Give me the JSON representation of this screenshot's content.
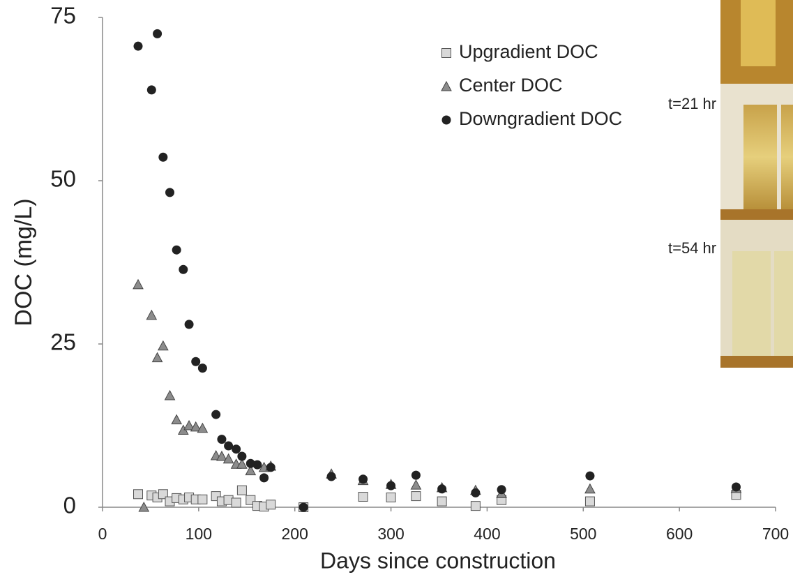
{
  "chart_data": {
    "type": "scatter",
    "x_label": "Days since construction",
    "y_label": "DOC (mg/L)",
    "xlim": [
      0,
      700
    ],
    "xticks": [
      0,
      100,
      200,
      300,
      400,
      500,
      600,
      700
    ],
    "ylim": [
      0,
      75
    ],
    "yticks": [
      0,
      25,
      50,
      75
    ],
    "annotations": [
      "t=21 hr",
      "t=54 hr"
    ],
    "series": [
      {
        "name": "Upgradient DOC",
        "marker": "square",
        "color": "#d9d9d9",
        "x": [
          37,
          51,
          57,
          63,
          70,
          77,
          84,
          90,
          97,
          104,
          118,
          124,
          131,
          139,
          145,
          154,
          161,
          168,
          175,
          209,
          271,
          300,
          326,
          353,
          388,
          415,
          507,
          659
        ],
        "values": [
          2.0,
          1.8,
          1.5,
          2.0,
          0.9,
          1.4,
          1.2,
          1.5,
          1.2,
          1.2,
          1.7,
          0.9,
          1.1,
          0.7,
          2.6,
          1.1,
          0.2,
          0.1,
          0.4,
          0,
          1.6,
          1.5,
          1.7,
          0.9,
          0.2,
          1.1,
          0.9,
          1.9
        ]
      },
      {
        "name": "Center DOC",
        "marker": "triangle",
        "color": "#8c8c8c",
        "x": [
          37,
          43,
          51,
          57,
          63,
          70,
          77,
          84,
          90,
          97,
          104,
          118,
          124,
          131,
          139,
          145,
          154,
          168,
          175,
          238,
          271,
          300,
          326,
          353,
          388,
          415,
          507,
          659
        ],
        "values": [
          34.1,
          0,
          29.4,
          22.9,
          24.7,
          17.1,
          13.4,
          11.8,
          12.5,
          12.3,
          12.1,
          7.9,
          7.8,
          7.4,
          6.6,
          6.6,
          5.6,
          6.1,
          6.3,
          5.1,
          4.1,
          3.5,
          3.4,
          3.0,
          2.6,
          2.1,
          2.8,
          2.9
        ]
      },
      {
        "name": "Downgradient DOC",
        "marker": "circle",
        "color": "#222222",
        "x": [
          37,
          57,
          51,
          63,
          70,
          77,
          84,
          90,
          97,
          104,
          118,
          124,
          131,
          139,
          145,
          154,
          161,
          168,
          175,
          209,
          238,
          271,
          300,
          326,
          353,
          388,
          415,
          507,
          659
        ],
        "values": [
          70.6,
          72.5,
          63.9,
          53.6,
          48.2,
          39.4,
          36.4,
          28.0,
          22.3,
          21.3,
          14.2,
          10.4,
          9.4,
          8.9,
          7.8,
          6.7,
          6.5,
          4.5,
          6.1,
          0,
          4.7,
          4.3,
          3.3,
          4.9,
          2.8,
          2.2,
          2.7,
          4.8,
          3.1
        ]
      }
    ]
  }
}
